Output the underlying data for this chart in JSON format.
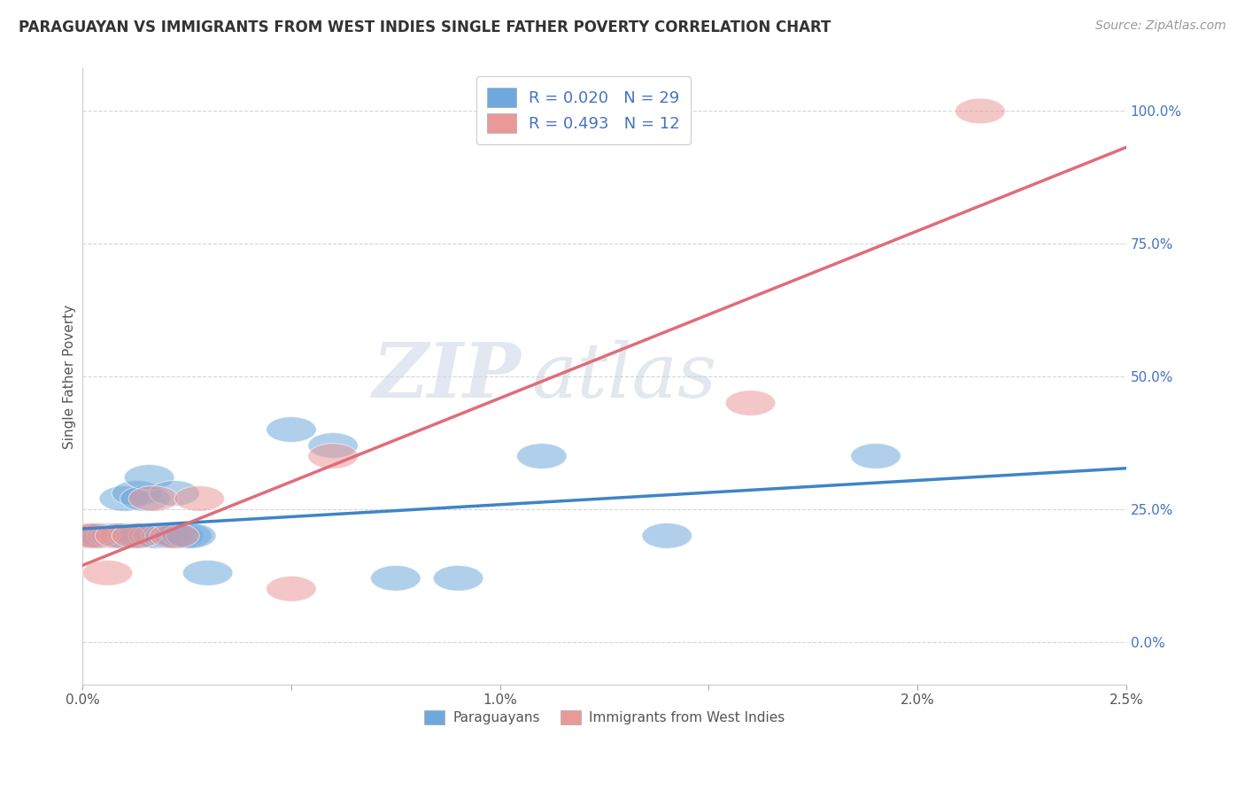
{
  "title": "PARAGUAYAN VS IMMIGRANTS FROM WEST INDIES SINGLE FATHER POVERTY CORRELATION CHART",
  "source": "Source: ZipAtlas.com",
  "ylabel": "Single Father Poverty",
  "xlim": [
    0.0,
    0.025
  ],
  "ylim": [
    -0.08,
    1.08
  ],
  "xticks": [
    0.0,
    0.005,
    0.01,
    0.015,
    0.02,
    0.025
  ],
  "xticklabels": [
    "0.0%",
    "",
    "1.0%",
    "",
    "2.0%",
    "2.5%"
  ],
  "yticks_right": [
    0.0,
    0.25,
    0.5,
    0.75,
    1.0
  ],
  "yticklabels_right": [
    "0.0%",
    "25.0%",
    "50.0%",
    "75.0%",
    "100.0%"
  ],
  "blue_color": "#6fa8dc",
  "pink_color": "#ea9999",
  "blue_line_color": "#3d85c8",
  "pink_line_color": "#e06c7a",
  "legend_R1": "0.020",
  "legend_N1": "29",
  "legend_R2": "0.493",
  "legend_N2": "12",
  "watermark_zip": "ZIP",
  "watermark_atlas": "atlas",
  "watermark_color_zip": "#c8d0dc",
  "watermark_color_atlas": "#b8c8d8",
  "background_color": "#ffffff",
  "grid_color": "#cccccc",
  "paraguayan_x": [
    0.0002,
    0.0003,
    0.0004,
    0.0005,
    0.0007,
    0.0008,
    0.001,
    0.001,
    0.0012,
    0.0013,
    0.0014,
    0.0015,
    0.0016,
    0.0017,
    0.0018,
    0.002,
    0.0021,
    0.0022,
    0.0023,
    0.0025,
    0.0026,
    0.003,
    0.005,
    0.006,
    0.0075,
    0.009,
    0.011,
    0.014,
    0.019
  ],
  "paraguayan_y": [
    0.2,
    0.2,
    0.2,
    0.2,
    0.2,
    0.2,
    0.2,
    0.27,
    0.2,
    0.28,
    0.2,
    0.27,
    0.31,
    0.2,
    0.2,
    0.2,
    0.2,
    0.28,
    0.2,
    0.2,
    0.2,
    0.13,
    0.4,
    0.37,
    0.12,
    0.12,
    0.35,
    0.2,
    0.35
  ],
  "westindies_x": [
    0.0001,
    0.0003,
    0.0006,
    0.0009,
    0.0013,
    0.0017,
    0.0022,
    0.0028,
    0.005,
    0.006,
    0.016,
    0.0215
  ],
  "westindies_y": [
    0.2,
    0.2,
    0.13,
    0.2,
    0.2,
    0.27,
    0.2,
    0.27,
    0.1,
    0.35,
    0.45,
    1.0
  ],
  "title_fontsize": 12,
  "source_fontsize": 10,
  "axis_label_fontsize": 11,
  "tick_fontsize": 11,
  "legend_fontsize": 13
}
